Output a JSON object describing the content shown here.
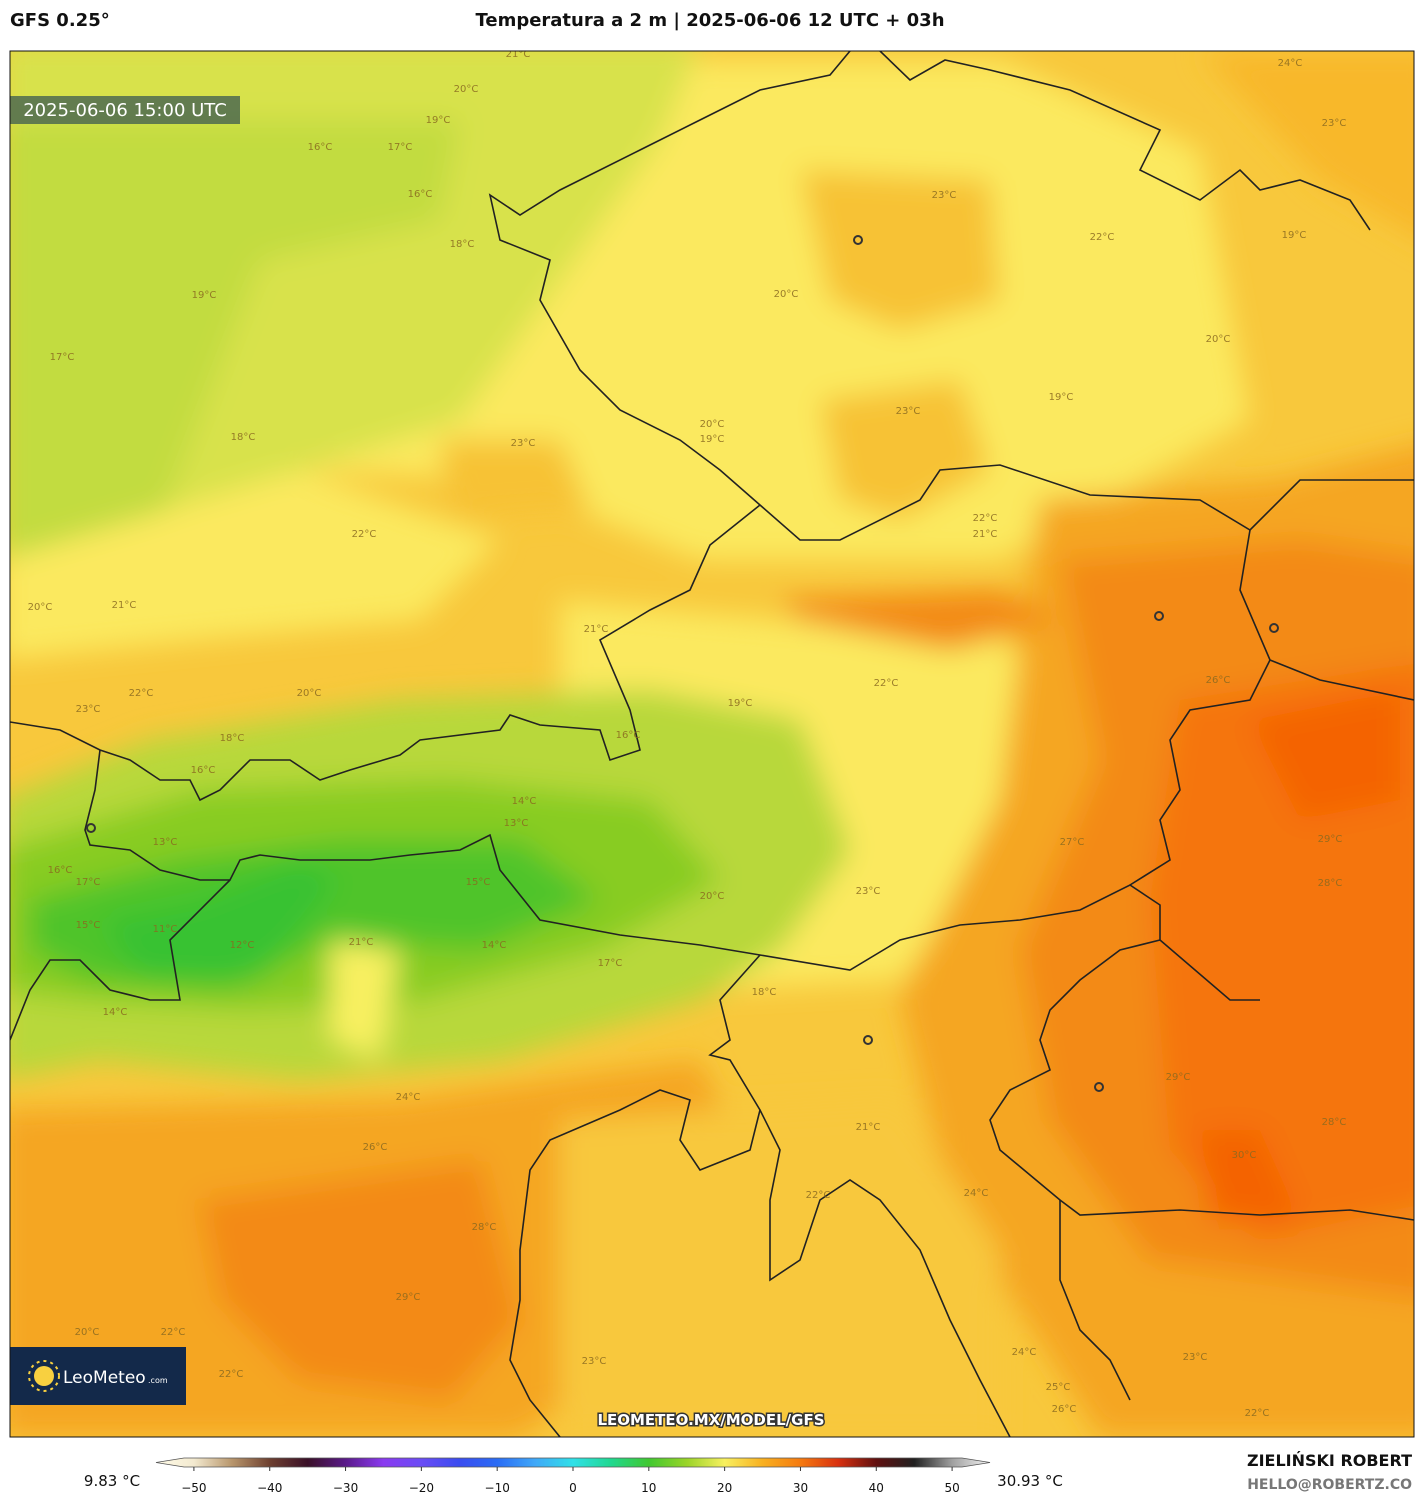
{
  "header": {
    "model": "GFS 0.25°",
    "title": "Temperatura a 2 m | 2025-06-06 12 UTC + 03h"
  },
  "map": {
    "valid_time": "2025-06-06 15:00 UTC",
    "watermark": "LEOMETEO.MX/MODEL/GFS",
    "logo": {
      "name": "LeoMeteo",
      "suffix": ".com"
    },
    "contour_labels": [
      "21°C",
      "20°C",
      "19°C",
      "16°C",
      "17°C",
      "16°C",
      "18°C",
      "19°C",
      "17°C",
      "18°C",
      "23°C",
      "22°C",
      "21°C",
      "20°C",
      "22°C",
      "23°C",
      "20°C",
      "18°C",
      "16°C",
      "13°C",
      "16°C",
      "17°C",
      "15°C",
      "11°C",
      "12°C",
      "14°C",
      "14°C",
      "13°C",
      "15°C",
      "14°C",
      "17°C",
      "21°C",
      "16°C",
      "19°C",
      "22°C",
      "21°C",
      "20°C",
      "23°C",
      "22°C",
      "24°C",
      "23°C",
      "19°C",
      "20°C",
      "19°C",
      "23°C",
      "20°C",
      "19°C",
      "22°C",
      "21°C",
      "26°C",
      "27°C",
      "29°C",
      "28°C",
      "23°C",
      "20°C",
      "18°C",
      "29°C",
      "28°C",
      "30°C",
      "21°C",
      "24°C",
      "26°C",
      "28°C",
      "29°C",
      "22°C",
      "24°C",
      "23°C",
      "24°C",
      "25°C",
      "26°C",
      "23°C",
      "22°C",
      "22°C",
      "20°C",
      "22°C"
    ]
  },
  "colorbar": {
    "min_label": "9.83 °C",
    "max_label": "30.93 °C",
    "range": [
      -55,
      55
    ],
    "ticks": [
      {
        "value": -50,
        "label": "−50"
      },
      {
        "value": -40,
        "label": "−40"
      },
      {
        "value": -30,
        "label": "−30"
      },
      {
        "value": -20,
        "label": "−20"
      },
      {
        "value": -10,
        "label": "−10"
      },
      0,
      10,
      20,
      30,
      40,
      50
    ],
    "colors": [
      [
        -55,
        "#fffbe8"
      ],
      [
        -50,
        "#f3ead0"
      ],
      [
        -45,
        "#b8966c"
      ],
      [
        -40,
        "#6e4030"
      ],
      [
        -35,
        "#3a1028"
      ],
      [
        -30,
        "#5a1a8a"
      ],
      [
        -25,
        "#8a3af0"
      ],
      [
        -20,
        "#6a4cf5"
      ],
      [
        -15,
        "#3a4cf0"
      ],
      [
        -10,
        "#2a6cf5"
      ],
      [
        -5,
        "#40a8f8"
      ],
      [
        0,
        "#30e0e8"
      ],
      [
        5,
        "#20d890"
      ],
      [
        10,
        "#40c830"
      ],
      [
        15,
        "#9ad428"
      ],
      [
        20,
        "#f8f060"
      ],
      [
        25,
        "#f8b020"
      ],
      [
        30,
        "#f57a10"
      ],
      [
        35,
        "#d83010"
      ],
      [
        40,
        "#601010"
      ],
      [
        45,
        "#202020"
      ],
      [
        50,
        "#a0a0a0"
      ],
      [
        55,
        "#f4f4f4"
      ]
    ]
  },
  "footer": {
    "author": "ZIELIŃSKI ROBERT",
    "email": "HELLO@ROBERTZ.CO"
  }
}
